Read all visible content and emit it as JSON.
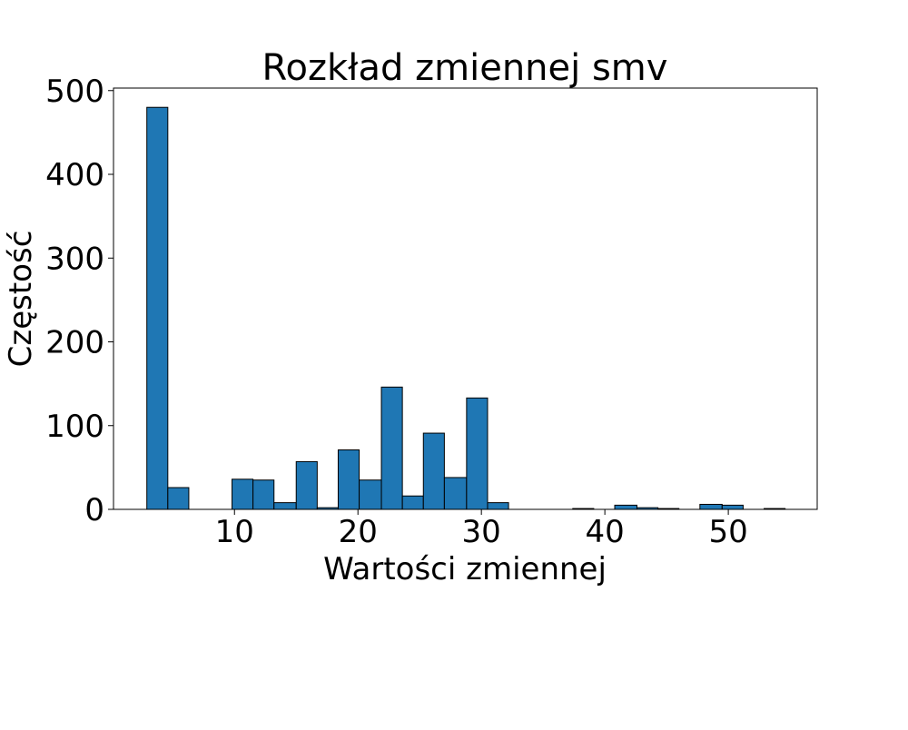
{
  "chart_data": {
    "type": "bar",
    "title": "Rozkład zmiennej smv",
    "xlabel": "Wartości zmiennej",
    "ylabel": "Częstość",
    "xlim": [
      0.2,
      57.2
    ],
    "ylim": [
      0,
      503
    ],
    "xticks": [
      10,
      20,
      30,
      40,
      50
    ],
    "yticks": [
      0,
      100,
      200,
      300,
      400,
      500
    ],
    "grid": false,
    "bar_color": "#1f77b4",
    "edge_color": "#000000",
    "bins": [
      {
        "x0": 2.9,
        "x1": 4.6,
        "count": 480
      },
      {
        "x0": 4.6,
        "x1": 6.3,
        "count": 26
      },
      {
        "x0": 6.3,
        "x1": 8.1,
        "count": 0
      },
      {
        "x0": 8.1,
        "x1": 9.8,
        "count": 0
      },
      {
        "x0": 9.8,
        "x1": 11.5,
        "count": 36
      },
      {
        "x0": 11.5,
        "x1": 13.2,
        "count": 35
      },
      {
        "x0": 13.2,
        "x1": 15.0,
        "count": 8
      },
      {
        "x0": 15.0,
        "x1": 16.7,
        "count": 57
      },
      {
        "x0": 16.7,
        "x1": 18.4,
        "count": 2
      },
      {
        "x0": 18.4,
        "x1": 20.1,
        "count": 71
      },
      {
        "x0": 20.1,
        "x1": 21.9,
        "count": 35
      },
      {
        "x0": 21.9,
        "x1": 23.6,
        "count": 146
      },
      {
        "x0": 23.6,
        "x1": 25.3,
        "count": 16
      },
      {
        "x0": 25.3,
        "x1": 27.0,
        "count": 91
      },
      {
        "x0": 27.0,
        "x1": 28.8,
        "count": 38
      },
      {
        "x0": 28.8,
        "x1": 30.5,
        "count": 133
      },
      {
        "x0": 30.5,
        "x1": 32.2,
        "count": 8
      },
      {
        "x0": 32.2,
        "x1": 33.9,
        "count": 0
      },
      {
        "x0": 33.9,
        "x1": 35.7,
        "count": 0
      },
      {
        "x0": 35.7,
        "x1": 37.4,
        "count": 0
      },
      {
        "x0": 37.4,
        "x1": 39.1,
        "count": 1
      },
      {
        "x0": 39.1,
        "x1": 40.8,
        "count": 0
      },
      {
        "x0": 40.8,
        "x1": 42.6,
        "count": 5
      },
      {
        "x0": 42.6,
        "x1": 44.3,
        "count": 2
      },
      {
        "x0": 44.3,
        "x1": 46.0,
        "count": 1
      },
      {
        "x0": 46.0,
        "x1": 47.7,
        "count": 0
      },
      {
        "x0": 47.7,
        "x1": 49.5,
        "count": 6
      },
      {
        "x0": 49.5,
        "x1": 51.2,
        "count": 5
      },
      {
        "x0": 51.2,
        "x1": 52.9,
        "count": 0
      },
      {
        "x0": 52.9,
        "x1": 54.6,
        "count": 1
      }
    ]
  }
}
